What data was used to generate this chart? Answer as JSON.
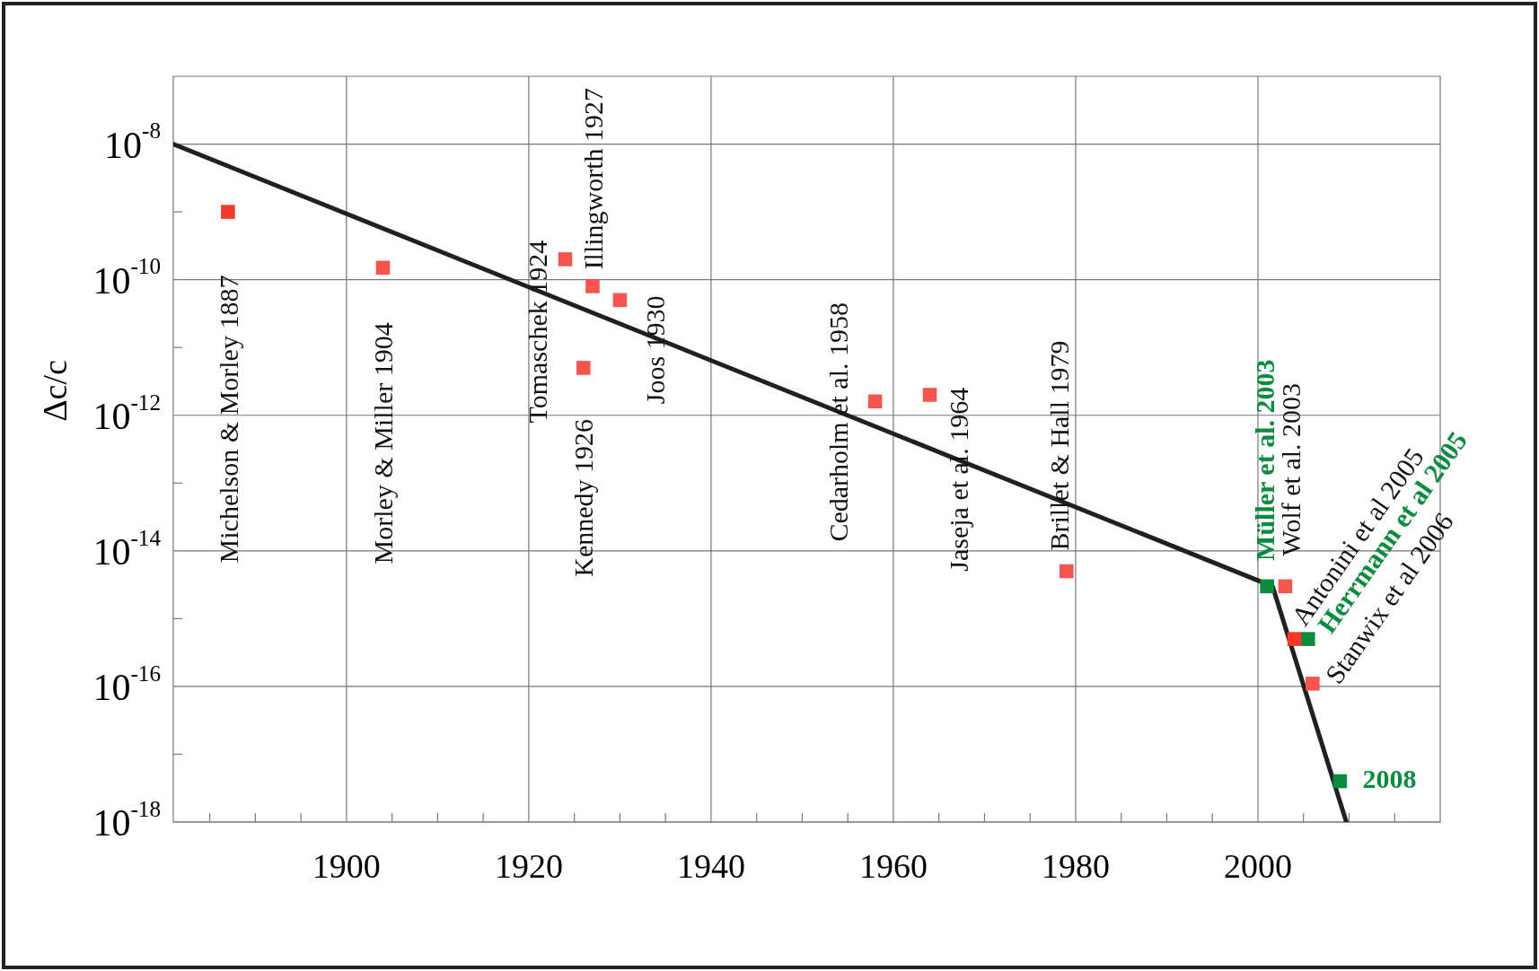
{
  "chart_data": {
    "type": "scatter",
    "ylabel": "Δc/c",
    "log": "y",
    "grid": true,
    "legend": false,
    "marker": "square",
    "xlim": [
      1881,
      2020
    ],
    "xticks": [
      {
        "value": 1885,
        "label": null
      },
      {
        "value": 1890,
        "label": null
      },
      {
        "value": 1895,
        "label": null
      },
      1900,
      {
        "value": 1905,
        "label": null
      },
      {
        "value": 1910,
        "label": null
      },
      {
        "value": 1915,
        "label": null
      },
      1920,
      {
        "value": 1925,
        "label": null
      },
      {
        "value": 1930,
        "label": null
      },
      {
        "value": 1935,
        "label": null
      },
      1940,
      {
        "value": 1945,
        "label": null
      },
      {
        "value": 1950,
        "label": null
      },
      {
        "value": 1955,
        "label": null
      },
      1960,
      {
        "value": 1965,
        "label": null
      },
      {
        "value": 1970,
        "label": null
      },
      {
        "value": 1975,
        "label": null
      },
      1980,
      {
        "value": 1985,
        "label": null
      },
      {
        "value": 1990,
        "label": null
      },
      {
        "value": 1995,
        "label": null
      },
      2000,
      {
        "value": 2005,
        "label": null
      },
      {
        "value": 2010,
        "label": null
      },
      {
        "value": 2015,
        "label": null
      }
    ],
    "ylim": [
      1e-18,
      1e-07
    ],
    "yticks": [
      {
        "value": 1e-18,
        "label": "10$^{-18}$"
      },
      {
        "value": 1e-17,
        "label": null
      },
      {
        "value": 1e-16,
        "label": "10$^{-16}$"
      },
      {
        "value": 1e-15,
        "label": null
      },
      {
        "value": 1e-14,
        "label": "10$^{-14}$"
      },
      {
        "value": 1e-13,
        "label": null
      },
      {
        "value": 1e-12,
        "label": "10$^{-12}$"
      },
      {
        "value": 1e-11,
        "label": null
      },
      {
        "value": 1e-10,
        "label": "10$^{-10}$"
      },
      {
        "value": 1e-09,
        "label": null
      },
      {
        "value": 1e-08,
        "label": "10$^{-8}$"
      }
    ],
    "series": [
      {
        "name": "Michelson & Morley 1887",
        "color": "#f23a2a",
        "x": [
          1887
        ],
        "values": [
          1e-09
        ]
      },
      {
        "name": "Morley & Miller 1904",
        "color": "#f4554f",
        "x": [
          1904
        ],
        "values": [
          1.5e-10
        ]
      },
      {
        "name": "Tomaschek 1924",
        "color": "#f4554f",
        "x": [
          1924
        ],
        "values": [
          2e-10
        ]
      },
      {
        "name": "Illingworth 1927",
        "color": "#f4554f",
        "x": [
          1927
        ],
        "values": [
          8e-11
        ]
      },
      {
        "name": "Kennedy 1926",
        "color": "#f4554f",
        "x": [
          1926
        ],
        "values": [
          5e-12
        ]
      },
      {
        "name": "Joos 1930",
        "color": "#f4554f",
        "x": [
          1930
        ],
        "values": [
          5e-11
        ]
      },
      {
        "name": "Cedarholm et al. 1958",
        "color": "#f4554f",
        "x": [
          1958
        ],
        "values": [
          1.6e-12
        ]
      },
      {
        "name": "Jaseja et al. 1964",
        "color": "#f4554f",
        "x": [
          1964
        ],
        "values": [
          2e-12
        ]
      },
      {
        "name": "Brillet & Hall 1979",
        "color": "#f4554f",
        "x": [
          1979
        ],
        "values": [
          5e-15
        ]
      },
      {
        "name": "Müller et al. 2003",
        "color": "#0a8c3e",
        "x": [
          2001
        ],
        "values": [
          3e-15
        ]
      },
      {
        "name": "Wolf et al. 2003",
        "color": "#f4554f",
        "x": [
          2003
        ],
        "values": [
          3e-15
        ]
      },
      {
        "name": "Antonini et al 2005",
        "color": "#f23a2a",
        "x": [
          2004
        ],
        "values": [
          5e-16
        ]
      },
      {
        "name": "Herrmann et al 2005",
        "color": "#0a8c3e",
        "x": [
          2005.5
        ],
        "values": [
          5e-16
        ]
      },
      {
        "name": "Stanwix et al 2006",
        "color": "#f4554f",
        "x": [
          2006
        ],
        "values": [
          1.1e-16
        ]
      },
      {
        "name": "2008",
        "color": "#0a8c3e",
        "x": [
          2009
        ],
        "values": [
          4e-18
        ]
      },
      {
        "type": "line",
        "color": "#231f20",
        "marker": "none",
        "x": [
          1881,
          2001.6,
          2009.7
        ],
        "values": [
          1e-08,
          3e-15,
          1e-18
        ]
      }
    ]
  }
}
